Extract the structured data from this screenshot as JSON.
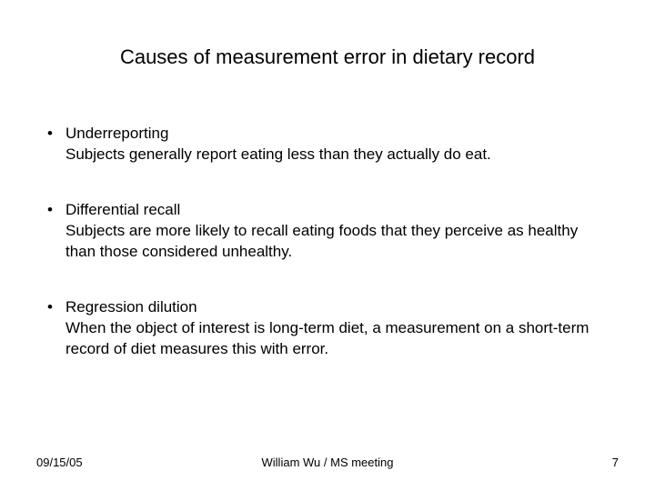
{
  "slide": {
    "title": "Causes of measurement error in dietary record",
    "title_fontsize": 22,
    "body_fontsize": 17,
    "footer_fontsize": 13,
    "background_color": "#ffffff",
    "text_color": "#000000",
    "bullets": [
      {
        "label": "Underreporting",
        "description": "Subjects generally report eating less than they actually do eat."
      },
      {
        "label": "Differential recall",
        "description": "Subjects are more likely to recall eating foods that they perceive as healthy than those considered unhealthy."
      },
      {
        "label": "Regression dilution",
        "description": "When the object of interest is long-term diet, a measurement on a short-term record of diet measures this with error."
      }
    ],
    "footer": {
      "date": "09/15/05",
      "center": "William Wu / MS meeting",
      "page": "7"
    }
  }
}
